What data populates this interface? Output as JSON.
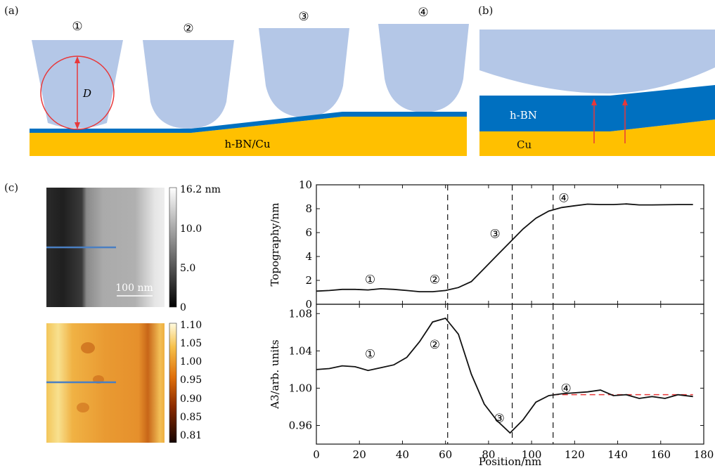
{
  "panels": {
    "a": {
      "label": "(a)",
      "tip_labels": [
        "①",
        "②",
        "③",
        "④"
      ],
      "diameter_label": "D",
      "substrate_label": "h-BN/Cu"
    },
    "b": {
      "label": "(b)",
      "hbn_label": "h-BN",
      "cu_label": "Cu"
    },
    "c": {
      "label": "(c)",
      "topo_colorbar_ticks": [
        "16.2 nm",
        "10.0",
        "5.0",
        "0"
      ],
      "scale_bar_label": "100 nm",
      "a3_colorbar_ticks": [
        "1.10",
        "1.05",
        "1.00",
        "0.95",
        "0.90",
        "0.85",
        "0.81"
      ]
    }
  },
  "colors": {
    "tip": "#b4c7e7",
    "hbn": "#0070c0",
    "cu": "#ffc000",
    "circle": "#e8383a",
    "arrow": "#e8383a",
    "scan_line": "#4a7fc2"
  },
  "chart_data": [
    {
      "type": "line",
      "ylabel": "Topography/nm",
      "ylim": [
        0,
        10
      ],
      "yticks": [
        0,
        2,
        4,
        6,
        8,
        10
      ],
      "xlim": [
        0,
        180
      ],
      "x": [
        0,
        6,
        12,
        18,
        24,
        30,
        36,
        42,
        48,
        54,
        60,
        66,
        72,
        78,
        84,
        90,
        96,
        102,
        108,
        114,
        120,
        126,
        132,
        138,
        144,
        150,
        156,
        162,
        168,
        175
      ],
      "y": [
        1.1,
        1.15,
        1.25,
        1.25,
        1.2,
        1.3,
        1.25,
        1.15,
        1.05,
        1.05,
        1.15,
        1.4,
        1.9,
        3.0,
        4.1,
        5.2,
        6.3,
        7.2,
        7.8,
        8.1,
        8.25,
        8.38,
        8.35,
        8.35,
        8.4,
        8.32,
        8.32,
        8.33,
        8.35,
        8.35
      ],
      "vlines": [
        61,
        91,
        110
      ],
      "annotations": [
        {
          "text": "①",
          "x": 25,
          "y": 2.1
        },
        {
          "text": "②",
          "x": 55,
          "y": 2.1
        },
        {
          "text": "③",
          "x": 83,
          "y": 5.9
        },
        {
          "text": "④",
          "x": 115,
          "y": 8.9
        }
      ]
    },
    {
      "type": "line",
      "ylabel": "A3/arb. units",
      "xlabel": "Position/nm",
      "ylim": [
        0.94,
        1.09
      ],
      "yticks": [
        0.96,
        1.0,
        1.04,
        1.08
      ],
      "ytick_labels": [
        "0.96",
        "1.00",
        "1.04",
        "1.08"
      ],
      "xlim": [
        0,
        180
      ],
      "xticks": [
        0,
        20,
        40,
        60,
        80,
        100,
        120,
        140,
        160,
        180
      ],
      "x": [
        0,
        6,
        12,
        18,
        24,
        30,
        36,
        42,
        48,
        54,
        60,
        66,
        72,
        78,
        84,
        90,
        96,
        102,
        108,
        114,
        120,
        126,
        132,
        138,
        144,
        150,
        156,
        162,
        168,
        175
      ],
      "y": [
        1.02,
        1.021,
        1.024,
        1.023,
        1.019,
        1.022,
        1.025,
        1.033,
        1.05,
        1.071,
        1.075,
        1.058,
        1.015,
        0.983,
        0.965,
        0.952,
        0.966,
        0.985,
        0.992,
        0.994,
        0.995,
        0.996,
        0.998,
        0.992,
        0.993,
        0.989,
        0.991,
        0.989,
        0.993,
        0.991
      ],
      "vlines": [
        61,
        91,
        110
      ],
      "fit_line": {
        "x": [
          110,
          175
        ],
        "y": [
          0.993,
          0.993
        ]
      },
      "annotations": [
        {
          "text": "①",
          "x": 25,
          "y": 1.037
        },
        {
          "text": "②",
          "x": 55,
          "y": 1.047
        },
        {
          "text": "③",
          "x": 85,
          "y": 0.968
        },
        {
          "text": "④",
          "x": 116,
          "y": 1.0
        }
      ]
    }
  ]
}
